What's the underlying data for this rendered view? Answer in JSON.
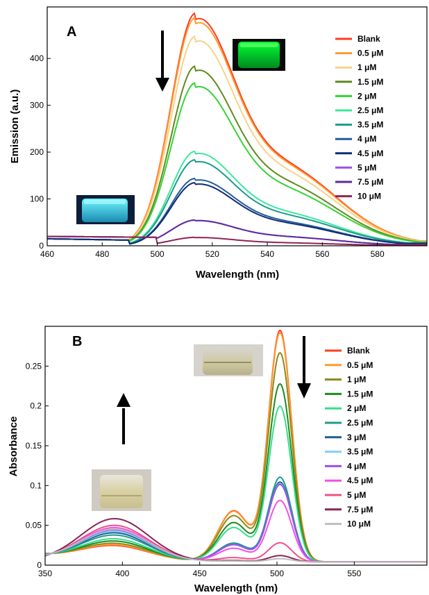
{
  "chart_data": [
    {
      "panel_label": "A",
      "type": "line",
      "xlabel": "Wavelength (nm)",
      "ylabel": "Emission (a.u.)",
      "xlim": [
        460,
        598
      ],
      "ylim": [
        0,
        510
      ],
      "xticks": [
        460,
        480,
        500,
        520,
        540,
        560,
        580
      ],
      "yticks": [
        0,
        100,
        200,
        300,
        400
      ],
      "grid": false,
      "legend_position": "right",
      "arrow_direction": "down",
      "inset_images": [
        "green-fluorescent-vial",
        "cyan-fluorescent-vial"
      ],
      "series": [
        {
          "name": "Blank",
          "color": "#ff3b1f",
          "peak": 497,
          "tail": 10
        },
        {
          "name": "0.5 μM",
          "color": "#ff9a2e",
          "peak": 488,
          "tail": 10
        },
        {
          "name": "1 μM",
          "color": "#f7d28a",
          "peak": 448,
          "tail": 9
        },
        {
          "name": "1.5 μM",
          "color": "#5f8a1e",
          "peak": 384,
          "tail": 8
        },
        {
          "name": "2 μM",
          "color": "#33d433",
          "peak": 348,
          "tail": 8
        },
        {
          "name": "2.5 μM",
          "color": "#3ce89a",
          "peak": 202,
          "tail": 6
        },
        {
          "name": "3.5 μM",
          "color": "#1b9a8e",
          "peak": 184,
          "tail": 6
        },
        {
          "name": "4 μM",
          "color": "#1f5f94",
          "peak": 144,
          "tail": 5
        },
        {
          "name": "4.5 μM",
          "color": "#102a78",
          "peak": 135,
          "tail": 5
        },
        {
          "name": "5 μM",
          "color": "#a050e8",
          "peak": 55,
          "tail": 3
        },
        {
          "name": "7.5 μM",
          "color": "#5b2a9e",
          "peak": 55,
          "tail": 3
        },
        {
          "name": "10 μM",
          "color": "#8e2356",
          "peak": 18,
          "tail": 2
        }
      ]
    },
    {
      "panel_label": "B",
      "type": "line",
      "xlabel": "Wavelength (nm)",
      "ylabel": "Absorbance",
      "xlim": [
        350,
        597
      ],
      "ylim": [
        0,
        0.3
      ],
      "xticks": [
        350,
        400,
        450,
        500,
        550
      ],
      "yticks": [
        0,
        0.05,
        0.1,
        0.15,
        0.2,
        0.25
      ],
      "grid": false,
      "legend_position": "right",
      "arrow_directions": [
        "up",
        "down"
      ],
      "inset_images": [
        "yellow-vial",
        "pale-vial"
      ],
      "series": [
        {
          "name": "Blank",
          "color": "#ff3b1f",
          "peak": 0.29,
          "uv": 0.018
        },
        {
          "name": "0.5 μM",
          "color": "#ff9a2e",
          "peak": 0.287,
          "uv": 0.019
        },
        {
          "name": "1 μM",
          "color": "#8a8a1a",
          "peak": 0.262,
          "uv": 0.021
        },
        {
          "name": "1.5 μM",
          "color": "#1f8a1f",
          "peak": 0.223,
          "uv": 0.024
        },
        {
          "name": "2 μM",
          "color": "#33e08a",
          "peak": 0.195,
          "uv": 0.027
        },
        {
          "name": "2.5 μM",
          "color": "#1f9a8e",
          "peak": 0.106,
          "uv": 0.032
        },
        {
          "name": "3 μM",
          "color": "#1f5f8a",
          "peak": 0.1,
          "uv": 0.035
        },
        {
          "name": "3.5 μM",
          "color": "#7fcfff",
          "peak": 0.098,
          "uv": 0.037
        },
        {
          "name": "4 μM",
          "color": "#9a50e8",
          "peak": 0.097,
          "uv": 0.039
        },
        {
          "name": "4.5 μM",
          "color": "#f050e8",
          "peak": 0.077,
          "uv": 0.042
        },
        {
          "name": "5 μM",
          "color": "#f0508a",
          "peak": 0.024,
          "uv": 0.045
        },
        {
          "name": "7.5 μM",
          "color": "#8a2356",
          "peak": 0.008,
          "uv": 0.054
        },
        {
          "name": "10 μM",
          "color": "#bdbdbd",
          "peak": 0.004,
          "uv": 0.04
        }
      ]
    }
  ]
}
